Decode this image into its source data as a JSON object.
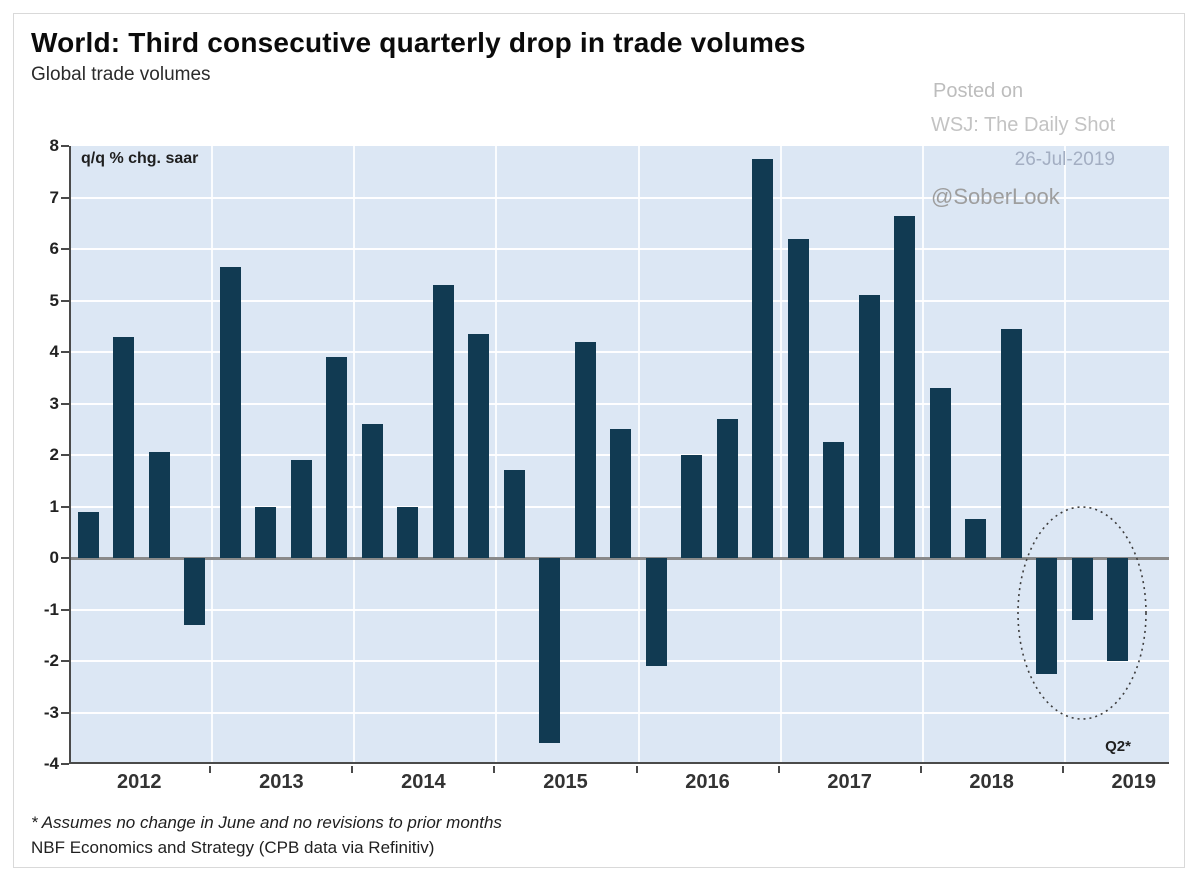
{
  "header": {
    "title": "World: Third consecutive quarterly drop in trade volumes",
    "subtitle": "Global trade volumes"
  },
  "watermark": {
    "posted_on": "Posted on",
    "source": "WSJ: The Daily Shot",
    "date": "26-Jul-2019",
    "handle": "@SoberLook"
  },
  "chart_data": {
    "type": "bar",
    "title": "World: Third consecutive quarterly drop in trade volumes",
    "subtitle": "Global trade volumes",
    "unit_label": "q/q % chg. saar",
    "xlabel": "",
    "ylabel": "q/q % chg. saar",
    "x": [
      "2012 Q1",
      "2012 Q2",
      "2012 Q3",
      "2012 Q4",
      "2013 Q1",
      "2013 Q2",
      "2013 Q3",
      "2013 Q4",
      "2014 Q1",
      "2014 Q2",
      "2014 Q3",
      "2014 Q4",
      "2015 Q1",
      "2015 Q2",
      "2015 Q3",
      "2015 Q4",
      "2016 Q1",
      "2016 Q2",
      "2016 Q3",
      "2016 Q4",
      "2017 Q1",
      "2017 Q2",
      "2017 Q3",
      "2017 Q4",
      "2018 Q1",
      "2018 Q2",
      "2018 Q3",
      "2018 Q4",
      "2019 Q1",
      "2019 Q2"
    ],
    "values": [
      0.9,
      4.3,
      2.05,
      -1.3,
      5.65,
      1.0,
      1.9,
      3.9,
      2.6,
      1.0,
      5.3,
      4.35,
      1.7,
      -3.6,
      4.2,
      2.5,
      -2.1,
      2.0,
      2.7,
      7.75,
      6.2,
      2.25,
      5.1,
      6.65,
      3.3,
      0.75,
      4.45,
      -2.25,
      -1.2,
      -2.0
    ],
    "ylim": [
      -4,
      8
    ],
    "y_ticks": [
      8,
      7,
      6,
      5,
      4,
      3,
      2,
      1,
      0,
      -1,
      -2,
      -3,
      -4
    ],
    "year_labels": [
      "2012",
      "2013",
      "2014",
      "2015",
      "2016",
      "2017",
      "2018",
      "2019"
    ],
    "annotation": "Q2*",
    "highlight": {
      "shape": "dashed-ellipse",
      "around": "last three bars (2018 Q4 - 2019 Q2)"
    },
    "grid": "horizontal white lines at integers, vertical white lines at year boundaries",
    "legend": "none",
    "colors": {
      "bar": "#113a52",
      "plot_background": "#dce7f4",
      "gridline": "#ffffff",
      "zero_line": "#8a8a8a",
      "axis": "#4a4a4a",
      "ellipse_stroke": "#3d3d3d"
    }
  },
  "footnotes": {
    "line1": "* Assumes no change in June and no revisions to prior months",
    "line2": "NBF Economics and Strategy (CPB data via Refinitiv)"
  }
}
